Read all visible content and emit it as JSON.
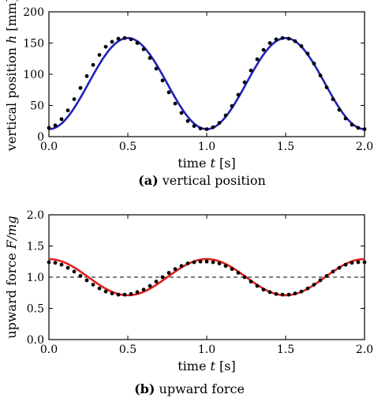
{
  "chart_data": [
    {
      "type": "line",
      "panel": "(a)",
      "caption_label": "(a)",
      "caption": "vertical position",
      "xlabel_prefix": "time",
      "xlabel_var": "t",
      "xlabel_unit": "[s]",
      "ylabel_prefix": "vertical position",
      "ylabel_var": "h",
      "ylabel_unit": "[mm]",
      "xlim": [
        0,
        2
      ],
      "ylim": [
        0,
        200
      ],
      "xticks": [
        "0.0",
        "0.5",
        "1.0",
        "1.5",
        "2.0"
      ],
      "yticks": [
        "0",
        "50",
        "100",
        "150",
        "200"
      ],
      "grid": false,
      "series": [
        {
          "style": "solid line",
          "color": "#1f22b5",
          "model": "cosine",
          "formula": "h = 85 - 73 cos(2*pi*t)",
          "x": [
            0.0,
            0.1,
            0.2,
            0.3,
            0.4,
            0.5,
            0.6,
            0.7,
            0.8,
            0.9,
            1.0,
            1.1,
            1.2,
            1.3,
            1.4,
            1.5,
            1.6,
            1.7,
            1.8,
            1.9,
            2.0
          ],
          "y": [
            12,
            26,
            62,
            108,
            144,
            158,
            144,
            108,
            62,
            26,
            12,
            26,
            62,
            108,
            144,
            158,
            144,
            108,
            62,
            26,
            12
          ]
        },
        {
          "style": "dots",
          "color": "#000000",
          "x": [
            0.0,
            0.04,
            0.08,
            0.12,
            0.16,
            0.2,
            0.24,
            0.28,
            0.32,
            0.36,
            0.4,
            0.44,
            0.48,
            0.52,
            0.56,
            0.6,
            0.64,
            0.68,
            0.72,
            0.76,
            0.8,
            0.84,
            0.88,
            0.92,
            0.96,
            1.0,
            1.04,
            1.08,
            1.12,
            1.16,
            1.2,
            1.24,
            1.28,
            1.32,
            1.36,
            1.4,
            1.44,
            1.48,
            1.52,
            1.56,
            1.6,
            1.64,
            1.68,
            1.72,
            1.76,
            1.8,
            1.84,
            1.88,
            1.92,
            1.96,
            2.0
          ],
          "y": [
            14,
            18,
            28,
            42,
            60,
            78,
            97,
            115,
            131,
            144,
            152,
            157,
            158,
            156,
            150,
            140,
            126,
            109,
            90,
            71,
            53,
            38,
            25,
            17,
            13,
            12,
            15,
            22,
            34,
            49,
            67,
            87,
            106,
            124,
            139,
            150,
            156,
            158,
            157,
            153,
            145,
            133,
            117,
            98,
            79,
            60,
            43,
            29,
            19,
            14,
            12
          ]
        }
      ]
    },
    {
      "type": "line",
      "panel": "(b)",
      "caption_label": "(b)",
      "caption": "upward force",
      "xlabel_prefix": "time",
      "xlabel_var": "t",
      "xlabel_unit": "[s]",
      "ylabel_prefix": "upward force",
      "ylabel_var": "F/mg",
      "ylabel_unit": "",
      "xlim": [
        0,
        2
      ],
      "ylim": [
        0,
        2
      ],
      "xticks": [
        "0.0",
        "0.5",
        "1.0",
        "1.5",
        "2.0"
      ],
      "yticks": [
        "0.0",
        "0.5",
        "1.0",
        "1.5",
        "2.0"
      ],
      "grid": false,
      "reference_line": {
        "y": 1.0,
        "style": "dashed",
        "color": "#000000"
      },
      "series": [
        {
          "style": "solid line",
          "color": "#e0201c",
          "model": "cosine",
          "formula": "F/mg = 1 + 0.29 cos(2*pi*t)",
          "x": [
            0.0,
            0.1,
            0.2,
            0.3,
            0.4,
            0.5,
            0.6,
            0.7,
            0.8,
            0.9,
            1.0,
            1.1,
            1.2,
            1.3,
            1.4,
            1.5,
            1.6,
            1.7,
            1.8,
            1.9,
            2.0
          ],
          "y": [
            1.29,
            1.23,
            1.09,
            0.91,
            0.77,
            0.71,
            0.77,
            0.91,
            1.09,
            1.23,
            1.29,
            1.23,
            1.09,
            0.91,
            0.77,
            0.71,
            0.77,
            0.91,
            1.09,
            1.23,
            1.29
          ]
        },
        {
          "style": "dots",
          "color": "#000000",
          "x": [
            0.0,
            0.04,
            0.08,
            0.12,
            0.16,
            0.2,
            0.24,
            0.28,
            0.32,
            0.36,
            0.4,
            0.44,
            0.48,
            0.52,
            0.56,
            0.6,
            0.64,
            0.68,
            0.72,
            0.76,
            0.8,
            0.84,
            0.88,
            0.92,
            0.96,
            1.0,
            1.04,
            1.08,
            1.12,
            1.16,
            1.2,
            1.24,
            1.28,
            1.32,
            1.36,
            1.4,
            1.44,
            1.48,
            1.52,
            1.56,
            1.6,
            1.64,
            1.68,
            1.72,
            1.76,
            1.8,
            1.84,
            1.88,
            1.92,
            1.96,
            2.0
          ],
          "y": [
            1.24,
            1.23,
            1.2,
            1.15,
            1.09,
            1.02,
            0.95,
            0.88,
            0.82,
            0.77,
            0.74,
            0.72,
            0.72,
            0.73,
            0.76,
            0.8,
            0.86,
            0.93,
            1.0,
            1.07,
            1.13,
            1.18,
            1.22,
            1.24,
            1.25,
            1.25,
            1.24,
            1.22,
            1.18,
            1.13,
            1.07,
            1.0,
            0.93,
            0.86,
            0.8,
            0.76,
            0.73,
            0.72,
            0.72,
            0.74,
            0.77,
            0.82,
            0.88,
            0.95,
            1.02,
            1.09,
            1.15,
            1.2,
            1.23,
            1.24,
            1.24
          ]
        }
      ]
    }
  ]
}
